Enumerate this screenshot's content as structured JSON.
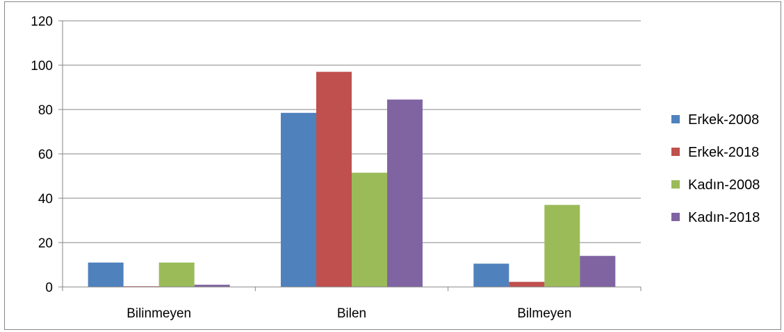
{
  "chart_data": {
    "type": "bar",
    "title": "",
    "xlabel": "",
    "ylabel": "",
    "categories": [
      "Bilinmeyen",
      "Bilen",
      "Bilmeyen"
    ],
    "ylim": [
      0,
      120
    ],
    "yticks": [
      0,
      20,
      40,
      60,
      80,
      100,
      120
    ],
    "grid": true,
    "legend_position": "right",
    "series": [
      {
        "name": "Erkek-2008",
        "color": "#4F81BD",
        "values": [
          11,
          78.5,
          10.5
        ]
      },
      {
        "name": "Erkek-2018",
        "color": "#C0504D",
        "values": [
          0.3,
          97,
          2.3
        ]
      },
      {
        "name": "Kadın-2008",
        "color": "#9BBB59",
        "values": [
          11,
          51.5,
          37
        ]
      },
      {
        "name": "Kadın-2018",
        "color": "#8064A2",
        "values": [
          1,
          84.5,
          14
        ]
      }
    ]
  }
}
